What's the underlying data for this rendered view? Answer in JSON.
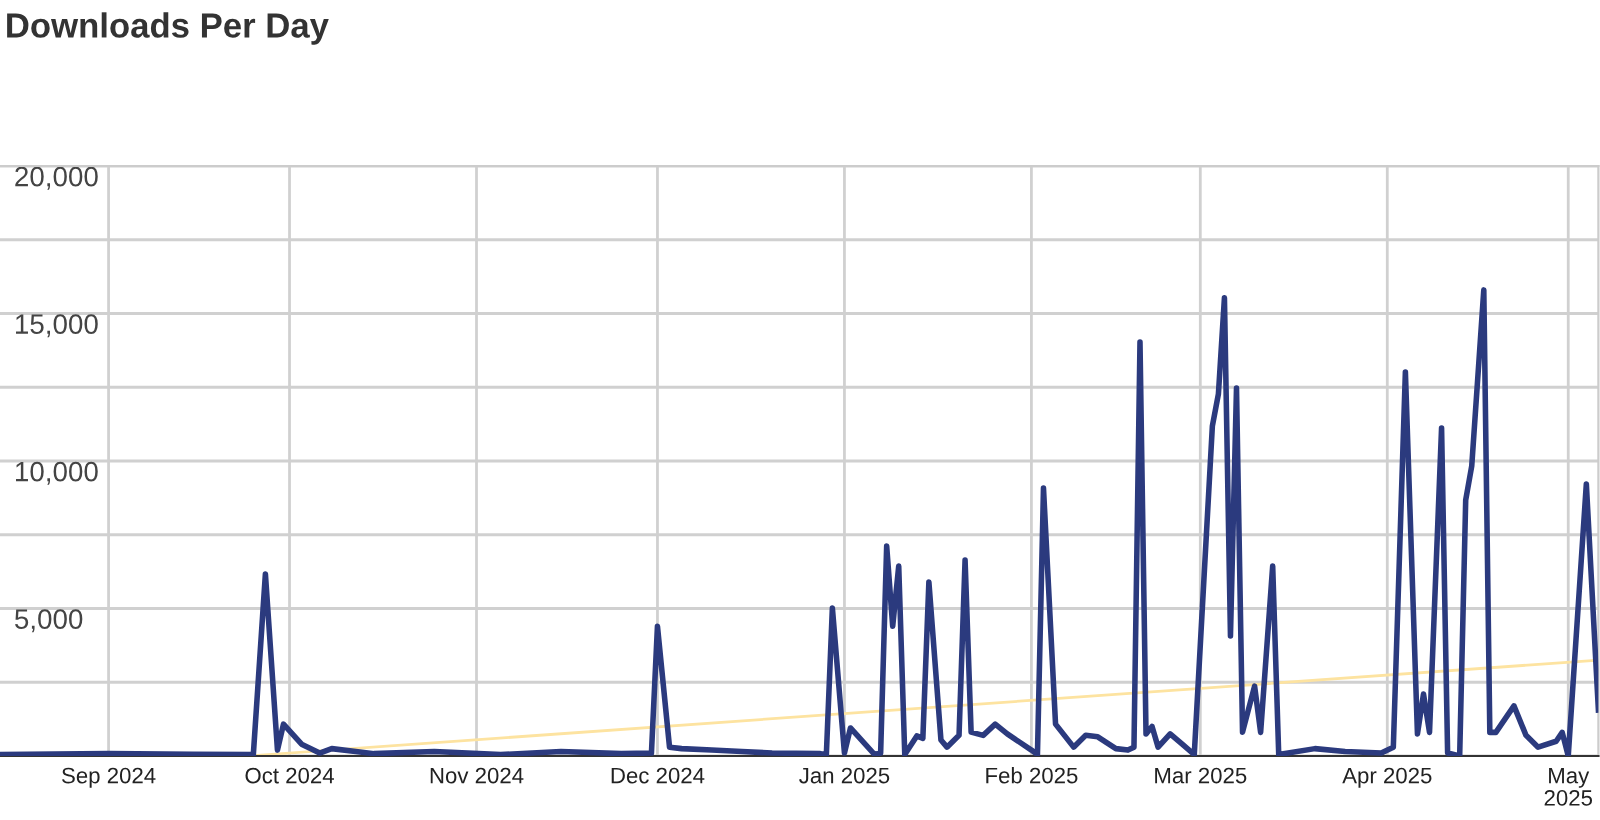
{
  "chart_data": {
    "type": "line",
    "title": "Downloads Per Day",
    "xlim": [
      "2024-08-14",
      "2025-05-06"
    ],
    "xticks": [
      {
        "value": "2024-09-01",
        "label": "Sep 2024"
      },
      {
        "value": "2024-10-01",
        "label": "Oct 2024"
      },
      {
        "value": "2024-11-01",
        "label": "Nov 2024"
      },
      {
        "value": "2024-12-01",
        "label": "Dec 2024"
      },
      {
        "value": "2025-01-01",
        "label": "Jan 2025"
      },
      {
        "value": "2025-02-01",
        "label": "Feb 2025"
      },
      {
        "value": "2025-03-01",
        "label": "Mar 2025"
      },
      {
        "value": "2025-04-01",
        "label": "Apr 2025"
      },
      {
        "value": "2025-05-01",
        "label": "May\n2025"
      }
    ],
    "ylim": [
      0,
      20000
    ],
    "yticks": [
      {
        "value": 0,
        "label": null
      },
      {
        "value": 2500,
        "label": null
      },
      {
        "value": 5000,
        "label": "5,000"
      },
      {
        "value": 7500,
        "label": null
      },
      {
        "value": 10000,
        "label": "10,000"
      },
      {
        "value": 12500,
        "label": null
      },
      {
        "value": 15000,
        "label": "15,000"
      },
      {
        "value": 17500,
        "label": null
      },
      {
        "value": 20000,
        "label": "20,000"
      }
    ],
    "grid": true,
    "legend": false,
    "marker": "none",
    "line_style": "solid",
    "series": [
      {
        "color": "#2b3a7e",
        "x": [
          "2024-08-14",
          "2024-09-01",
          "2024-09-15",
          "2024-09-25",
          "2024-09-27",
          "2024-09-29",
          "2024-09-30",
          "2024-10-03",
          "2024-10-06",
          "2024-10-08",
          "2024-10-15",
          "2024-10-25",
          "2024-11-05",
          "2024-11-15",
          "2024-11-25",
          "2024-11-30",
          "2024-12-01",
          "2024-12-03",
          "2024-12-05",
          "2024-12-10",
          "2024-12-15",
          "2024-12-20",
          "2024-12-28",
          "2024-12-29",
          "2024-12-30",
          "2025-01-01",
          "2025-01-02",
          "2025-01-06",
          "2025-01-07",
          "2025-01-08",
          "2025-01-09",
          "2025-01-10",
          "2025-01-11",
          "2025-01-13",
          "2025-01-14",
          "2025-01-15",
          "2025-01-17",
          "2025-01-18",
          "2025-01-20",
          "2025-01-21",
          "2025-01-22",
          "2025-01-24",
          "2025-01-26",
          "2025-01-28",
          "2025-02-01",
          "2025-02-02",
          "2025-02-03",
          "2025-02-05",
          "2025-02-08",
          "2025-02-10",
          "2025-02-12",
          "2025-02-15",
          "2025-02-17",
          "2025-02-18",
          "2025-02-19",
          "2025-02-20",
          "2025-02-21",
          "2025-02-22",
          "2025-02-24",
          "2025-02-26",
          "2025-02-28",
          "2025-03-03",
          "2025-03-04",
          "2025-03-05",
          "2025-03-06",
          "2025-03-07",
          "2025-03-08",
          "2025-03-10",
          "2025-03-11",
          "2025-03-13",
          "2025-03-14",
          "2025-03-20",
          "2025-03-25",
          "2025-03-31",
          "2025-04-02",
          "2025-04-04",
          "2025-04-06",
          "2025-04-07",
          "2025-04-08",
          "2025-04-10",
          "2025-04-11",
          "2025-04-13",
          "2025-04-14",
          "2025-04-15",
          "2025-04-17",
          "2025-04-18",
          "2025-04-19",
          "2025-04-22",
          "2025-04-24",
          "2025-04-26",
          "2025-04-29",
          "2025-04-30",
          "2025-05-01",
          "2025-05-04",
          "2025-05-06"
        ],
        "values": [
          50,
          80,
          60,
          50,
          6170,
          200,
          1080,
          400,
          100,
          250,
          80,
          150,
          50,
          150,
          80,
          100,
          4400,
          300,
          250,
          200,
          150,
          100,
          80,
          50,
          5020,
          100,
          950,
          50,
          100,
          7120,
          4400,
          6440,
          50,
          680,
          600,
          5900,
          540,
          300,
          700,
          6640,
          810,
          700,
          1080,
          750,
          200,
          50,
          9080,
          1080,
          300,
          700,
          650,
          250,
          200,
          300,
          14030,
          750,
          1000,
          300,
          750,
          400,
          50,
          11190,
          12270,
          15530,
          4070,
          12470,
          810,
          2370,
          800,
          6440,
          50,
          250,
          150,
          100,
          300,
          13020,
          750,
          2100,
          800,
          11120,
          100,
          0,
          8680,
          9830,
          15800,
          800,
          800,
          1700,
          700,
          300,
          500,
          800,
          0,
          9220,
          1560
        ]
      },
      {
        "color": "#fde3a0",
        "x": [
          "2024-09-24",
          "2025-05-06"
        ],
        "values": [
          0,
          3250
        ]
      }
    ]
  }
}
